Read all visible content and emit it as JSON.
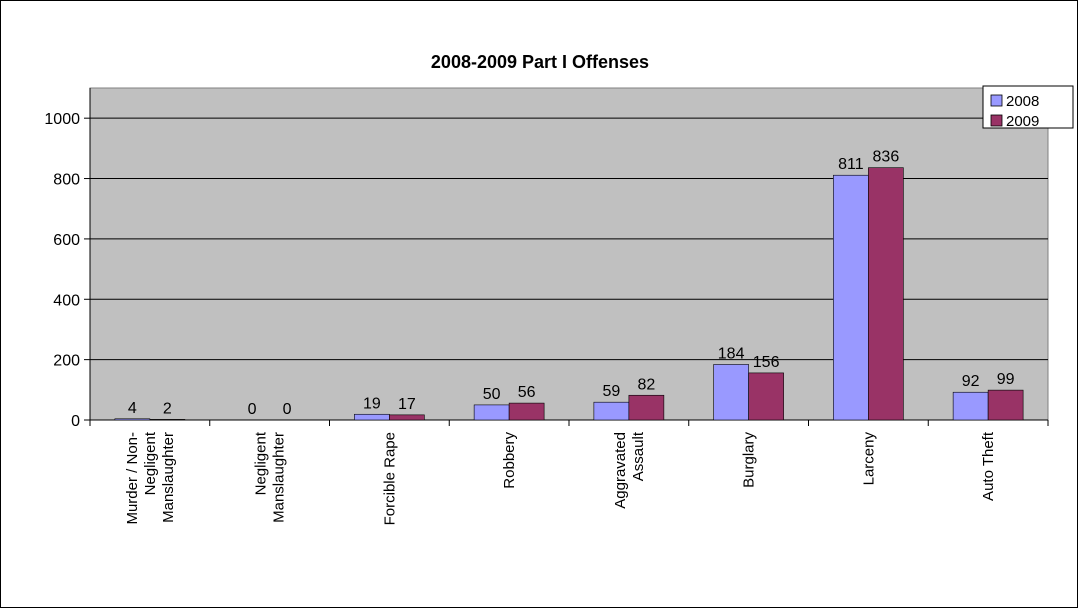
{
  "chart_data": {
    "type": "bar",
    "title": "2008-2009 Part I Offenses",
    "xlabel": "",
    "ylabel": "",
    "ylim": [
      0,
      1100
    ],
    "yticks": [
      0,
      200,
      400,
      600,
      800,
      1000
    ],
    "grid": true,
    "legend_position": "top-right",
    "categories": [
      "Murder / Non-Negligent Manslaughter",
      "Negligent Manslaughter",
      "Forcible Rape",
      "Robbery",
      "Aggravated Assault",
      "Burglary",
      "Larceny",
      "Auto Theft"
    ],
    "series": [
      {
        "name": "2008",
        "color": "#9999ff",
        "values": [
          4,
          0,
          19,
          50,
          59,
          184,
          811,
          92
        ]
      },
      {
        "name": "2009",
        "color": "#993366",
        "values": [
          2,
          0,
          17,
          56,
          82,
          156,
          836,
          99
        ]
      }
    ],
    "plot_background": "#c0c0c0"
  }
}
